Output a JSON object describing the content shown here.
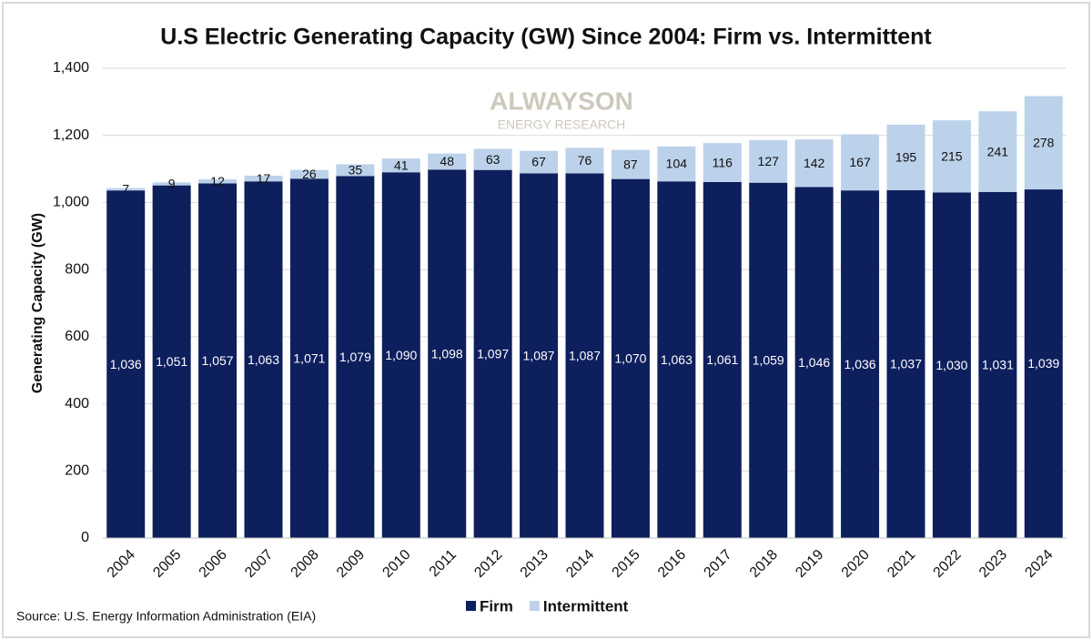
{
  "chart_data": {
    "type": "stacked_bar",
    "title": "U.S Electric Generating Capacity (GW) Since 2004: Firm vs. Intermittent",
    "ylabel": "Generating Capacity (GW)",
    "source": "Source: U.S. Energy Information Administration (EIA)",
    "watermark": {
      "brand": "ALWAYSON",
      "tagline": "ENERGY RESEARCH"
    },
    "categories": [
      "2004",
      "2005",
      "2006",
      "2007",
      "2008",
      "2009",
      "2010",
      "2011",
      "2012",
      "2013",
      "2014",
      "2015",
      "2016",
      "2017",
      "2018",
      "2019",
      "2020",
      "2021",
      "2022",
      "2023",
      "2024"
    ],
    "series": [
      {
        "name": "Firm",
        "color": "#0e1f5d",
        "values": [
          1036,
          1051,
          1057,
          1063,
          1071,
          1079,
          1090,
          1098,
          1097,
          1087,
          1087,
          1070,
          1063,
          1061,
          1059,
          1046,
          1036,
          1037,
          1030,
          1031,
          1039
        ],
        "value_labels": [
          "1,036",
          "1,051",
          "1,057",
          "1,063",
          "1,071",
          "1,079",
          "1,090",
          "1,098",
          "1,097",
          "1,087",
          "1,087",
          "1,070",
          "1,063",
          "1,061",
          "1,059",
          "1,046",
          "1,036",
          "1,037",
          "1,030",
          "1,031",
          "1,039"
        ]
      },
      {
        "name": "Intermittent",
        "color": "#bcd2ea",
        "values": [
          7,
          9,
          12,
          17,
          26,
          35,
          41,
          48,
          63,
          67,
          76,
          87,
          104,
          116,
          127,
          142,
          167,
          195,
          215,
          241,
          278
        ]
      }
    ],
    "ylim": [
      0,
      1400
    ],
    "yticks": [
      0,
      200,
      400,
      600,
      800,
      {
        "value": 1000,
        "label": "1,000"
      },
      {
        "value": 1200,
        "label": "1,200"
      },
      {
        "value": 1400,
        "label": "1,400"
      }
    ],
    "grid": true,
    "legend": "bottom"
  }
}
